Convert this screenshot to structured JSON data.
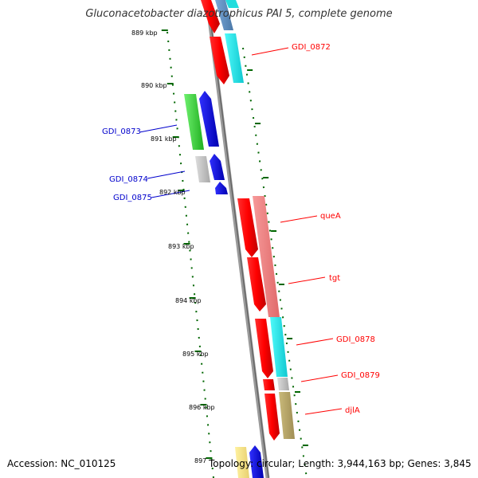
{
  "title": "Gluconacetobacter diazotrophicus PAI 5, complete genome",
  "footer": {
    "accession": "Accession: NC_010125",
    "topology": "Topology: circular; Length: 3,944,163 bp; Genes: 3,845"
  },
  "ruler_labels": [
    "889 kbp",
    "890 kbp",
    "891 kbp",
    "892 kbp",
    "893 kbp",
    "894 kbp",
    "895 kbp",
    "896 kbp",
    "897"
  ],
  "genes": [
    {
      "label": "GDI_0872",
      "color": "#ff0000"
    },
    {
      "label": "GDI_0873",
      "color": "#0000cc"
    },
    {
      "label": "GDI_0874",
      "color": "#0000cc"
    },
    {
      "label": "GDI_0875",
      "color": "#0000cc"
    },
    {
      "label": "queA",
      "color": "#ff0000"
    },
    {
      "label": "tgt",
      "color": "#ff0000"
    },
    {
      "label": "GDI_0878",
      "color": "#ff0000"
    },
    {
      "label": "GDI_0879",
      "color": "#ff0000"
    },
    {
      "label": "djlA",
      "color": "#ff0000"
    }
  ],
  "colors": {
    "backbone": "#888888",
    "tick": "#006600",
    "cds_reverse": "#ff0000",
    "cds_forward": "#0000ff",
    "label_red": "#ff0000",
    "label_blue": "#0000cc"
  }
}
